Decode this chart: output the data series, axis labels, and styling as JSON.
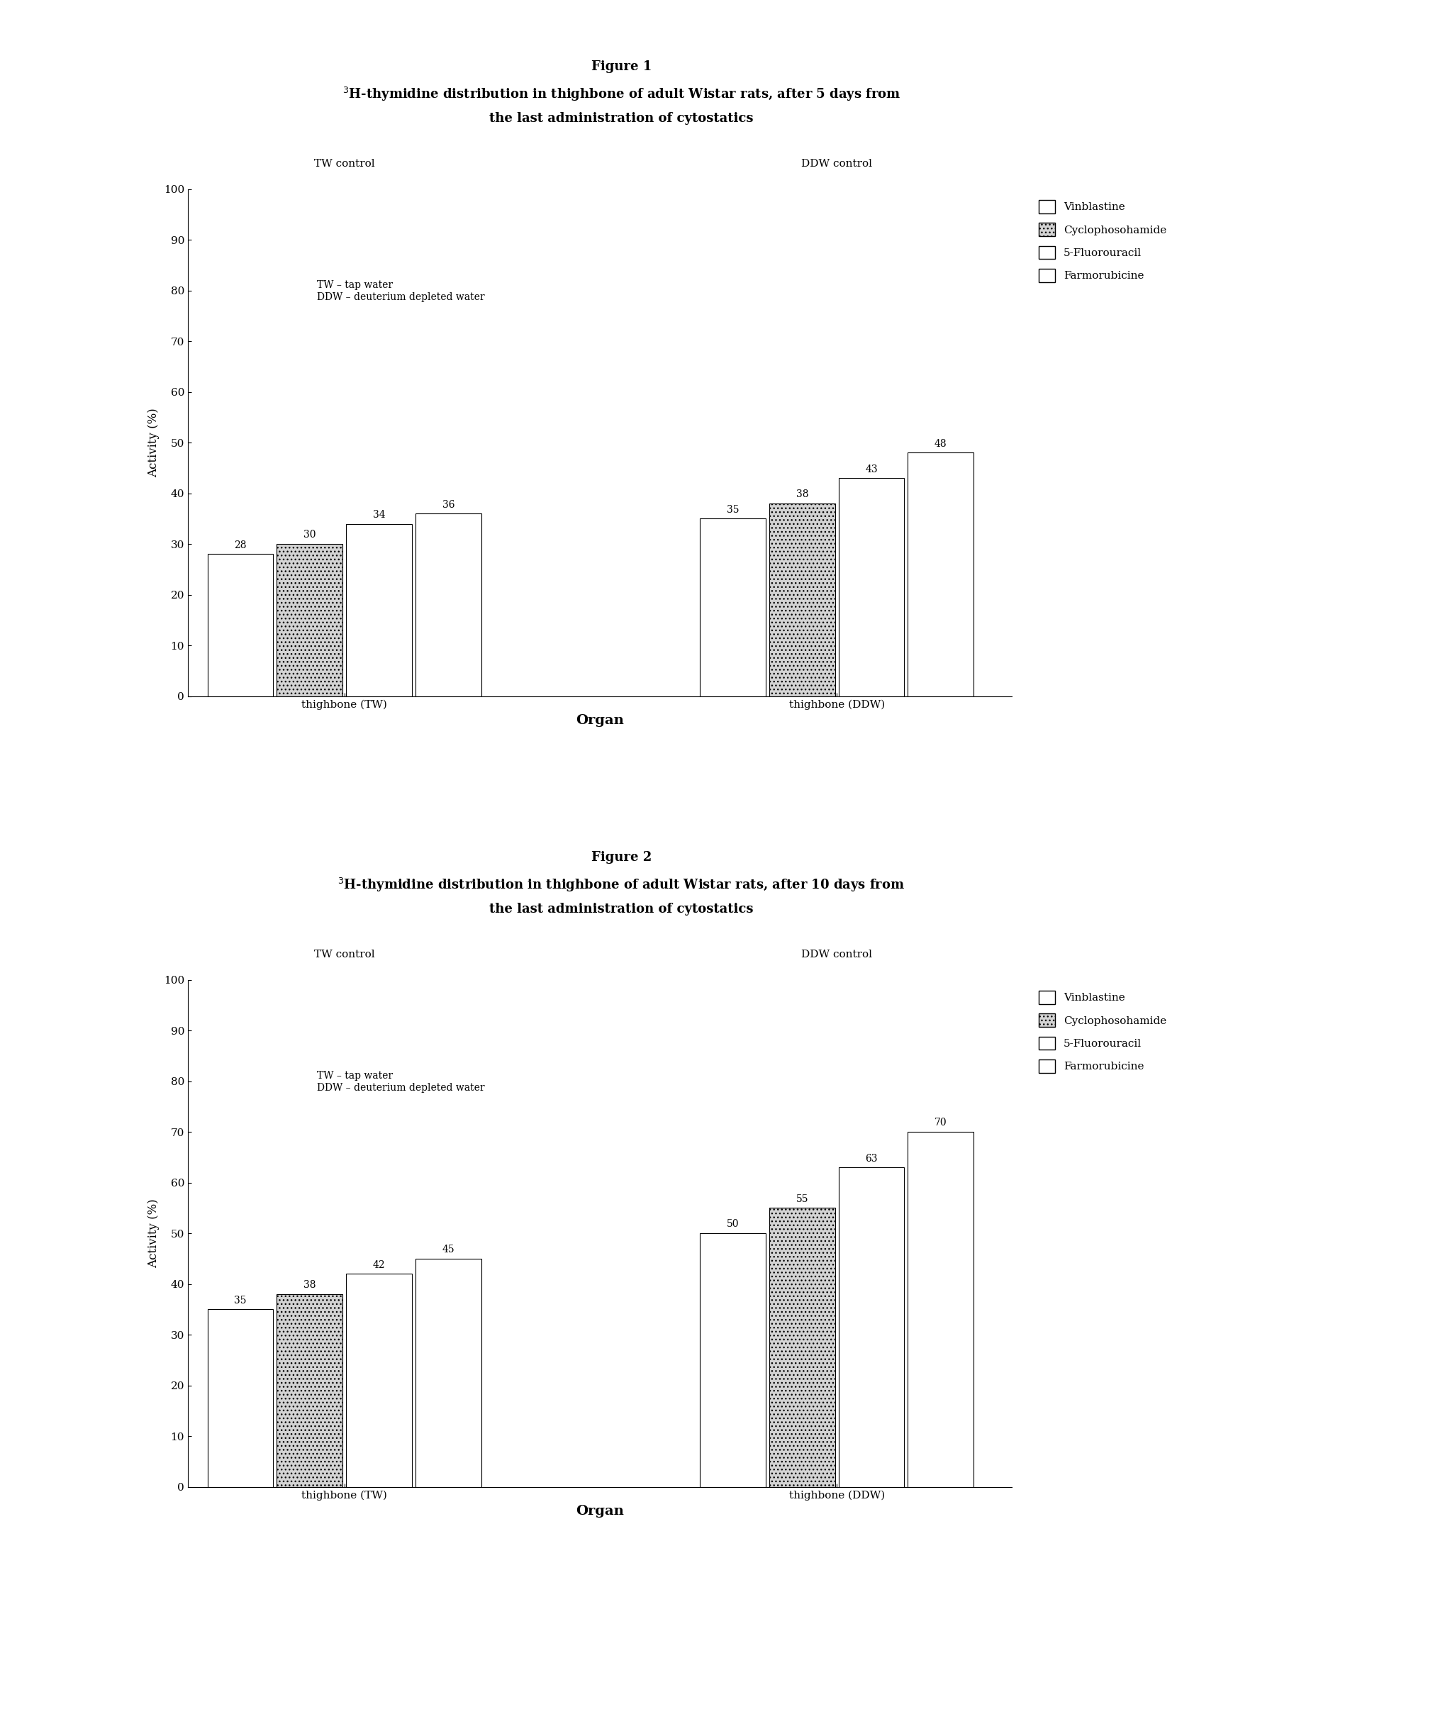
{
  "fig1": {
    "title_line1": "Figure 1",
    "title_line2": "$^{3}$H-thymidine distribution in thighbone of adult Wistar rats, after 5 days from",
    "title_line3": "the last administration of cytostatics",
    "tw_control_label": "TW control",
    "ddw_control_label": "DDW control",
    "annotation": "TW – tap water\nDDW – deuterium depleted water",
    "group_labels": [
      "thighbone (TW)",
      "thighbone (DDW)"
    ],
    "values_tw": [
      28,
      30,
      34,
      36
    ],
    "values_ddw": [
      35,
      38,
      43,
      48
    ],
    "ylabel": "Activity (%)",
    "xlabel": "Organ",
    "ylim": [
      0,
      100
    ],
    "yticks": [
      0,
      10,
      20,
      30,
      40,
      50,
      60,
      70,
      80,
      90,
      100
    ],
    "legend_labels": [
      "Vinblastine",
      "Cyclophosohamide",
      "5-Fluorouracil",
      "Farmorubicine"
    ],
    "bar_colors": [
      "white",
      "lightgray",
      "white",
      "white"
    ],
    "bar_hatches": [
      "",
      "...",
      "",
      ""
    ],
    "bar_edgecolors": [
      "black",
      "black",
      "black",
      "black"
    ]
  },
  "fig2": {
    "title_line1": "Figure 2",
    "title_line2": "$^{3}$H-thymidine distribution in thighbone of adult Wistar rats, after 10 days from",
    "title_line3": "the last administration of cytostatics",
    "tw_control_label": "TW control",
    "ddw_control_label": "DDW control",
    "annotation": "TW – tap water\nDDW – deuterium depleted water",
    "group_labels": [
      "thighbone (TW)",
      "thighbone (DDW)"
    ],
    "values_tw": [
      35,
      38,
      42,
      45
    ],
    "values_ddw": [
      50,
      55,
      63,
      70
    ],
    "ylabel": "Activity (%)",
    "xlabel": "Organ",
    "ylim": [
      0,
      100
    ],
    "yticks": [
      0,
      10,
      20,
      30,
      40,
      50,
      60,
      70,
      80,
      90,
      100
    ],
    "legend_labels": [
      "Vinblastine",
      "Cyclophosohamide",
      "5-Fluorouracil",
      "Farmorubicine"
    ],
    "bar_colors": [
      "white",
      "lightgray",
      "white",
      "white"
    ],
    "bar_hatches": [
      "",
      "...",
      "",
      ""
    ],
    "bar_edgecolors": [
      "black",
      "black",
      "black",
      "black"
    ]
  },
  "background_color": "#ffffff"
}
